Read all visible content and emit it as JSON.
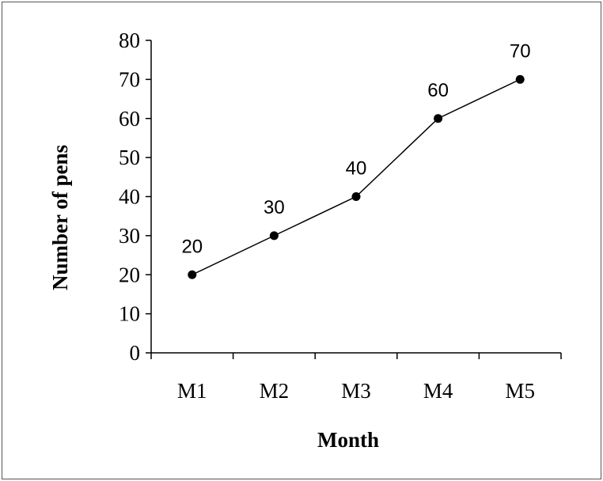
{
  "chart_data": {
    "type": "line",
    "title": "",
    "xlabel": "Month",
    "ylabel": "Number of pens",
    "categories": [
      "M1",
      "M2",
      "M3",
      "M4",
      "M5"
    ],
    "series": [
      {
        "values": [
          20,
          30,
          40,
          60,
          70
        ]
      }
    ],
    "data_labels": [
      "20",
      "30",
      "40",
      "60",
      "70"
    ],
    "y_ticks": [
      "0",
      "10",
      "20",
      "30",
      "40",
      "50",
      "60",
      "70",
      "80"
    ],
    "ylim": [
      0,
      80
    ],
    "grid": false,
    "legend": "none",
    "colors": {
      "line": "#000000",
      "marker": "#000000",
      "axis": "#000000"
    }
  }
}
